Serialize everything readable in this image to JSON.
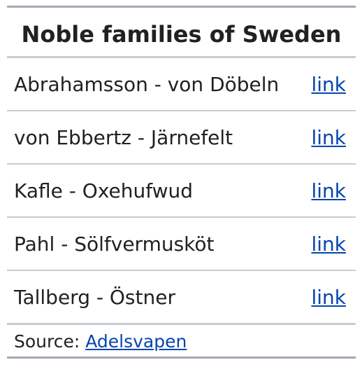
{
  "navbox": {
    "title": "Noble families of Sweden",
    "rows": [
      {
        "label": "Abrahamsson - von Döbeln",
        "link": "link"
      },
      {
        "label": "von Ebbertz - Järnefelt",
        "link": "link"
      },
      {
        "label": "Kafle - Oxehufwud",
        "link": "link"
      },
      {
        "label": "Pahl - Sölfvermusköt",
        "link": "link"
      },
      {
        "label": "Tallberg - Östner",
        "link": "link"
      }
    ],
    "source": {
      "prefix": "Source: ",
      "link_text": "Adelsvapen"
    }
  }
}
